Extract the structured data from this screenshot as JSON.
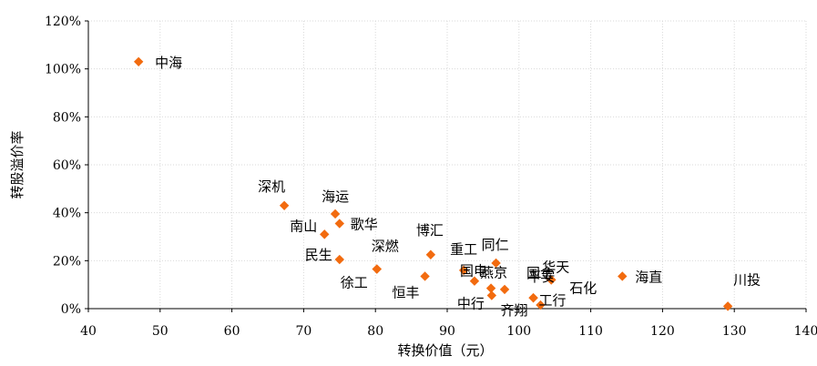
{
  "chart_data": {
    "type": "scatter",
    "title": "",
    "xlabel": "转换价值（元）",
    "ylabel": "转股溢价率",
    "xlim": [
      40,
      140
    ],
    "ylim": [
      0,
      1.2
    ],
    "x_ticks": [
      40,
      50,
      60,
      70,
      80,
      90,
      100,
      110,
      120,
      130,
      140
    ],
    "y_ticks": [
      0,
      0.2,
      0.4,
      0.6,
      0.8,
      1.0,
      1.2
    ],
    "x_tick_labels": [
      "40",
      "50",
      "60",
      "70",
      "80",
      "90",
      "100",
      "110",
      "120",
      "130",
      "140"
    ],
    "y_tick_labels": [
      "0%",
      "20%",
      "40%",
      "60%",
      "80%",
      "100%",
      "120%"
    ],
    "grid": true,
    "marker_color": "#f26b0f",
    "points": [
      {
        "label": "中海",
        "x": 47.0,
        "y": 1.03
      },
      {
        "label": "深机",
        "x": 67.3,
        "y": 0.43
      },
      {
        "label": "海运",
        "x": 74.4,
        "y": 0.395
      },
      {
        "label": "南山",
        "x": 72.9,
        "y": 0.31
      },
      {
        "label": "歌华",
        "x": 75.0,
        "y": 0.355
      },
      {
        "label": "民生",
        "x": 75.0,
        "y": 0.205
      },
      {
        "label": "深燃",
        "x": 80.2,
        "y": 0.165
      },
      {
        "label": "徐工",
        "x": 80.2,
        "y": 0.165
      },
      {
        "label": "博汇",
        "x": 87.7,
        "y": 0.225
      },
      {
        "label": "恒丰",
        "x": 86.9,
        "y": 0.135
      },
      {
        "label": "重工",
        "x": 92.3,
        "y": 0.16
      },
      {
        "label": "国电",
        "x": 93.8,
        "y": 0.115
      },
      {
        "label": "同仁",
        "x": 96.8,
        "y": 0.19
      },
      {
        "label": "中行",
        "x": 96.2,
        "y": 0.055
      },
      {
        "label": "燕京",
        "x": 96.1,
        "y": 0.085
      },
      {
        "label": "国金",
        "x": 98.0,
        "y": 0.08
      },
      {
        "label": "平安",
        "x": 102.0,
        "y": 0.045
      },
      {
        "label": "齐翔",
        "x": 102.0,
        "y": 0.045
      },
      {
        "label": "工行",
        "x": 103.0,
        "y": 0.015
      },
      {
        "label": "华天",
        "x": 104.5,
        "y": 0.12
      },
      {
        "label": "石化",
        "x": 104.5,
        "y": 0.12
      },
      {
        "label": "海直",
        "x": 114.4,
        "y": 0.135
      },
      {
        "label": "川投",
        "x": 129.1,
        "y": 0.01
      }
    ]
  }
}
